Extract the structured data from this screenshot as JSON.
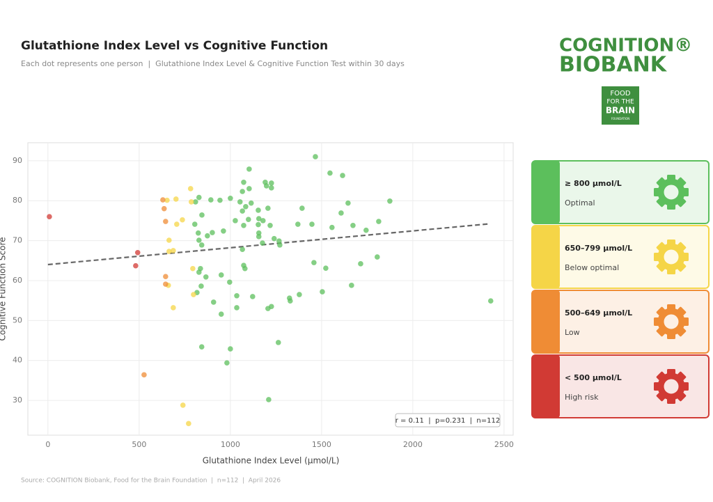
{
  "chart_data": {
    "type": "scatter",
    "title": "Glutathione Index Level vs Cognitive Function",
    "subtitle": "Each dot represents one person  |  Glutathione Index Level & Cognitive Function Test within 30 days",
    "x_label": "Glutathione Index Level (μmol/L)",
    "y_label": "Cognitive Function Score",
    "source": "Source: COGNITION Biobank, Food for the Brain Foundation  |  n=112  |  April 2026",
    "stats": "r = 0.11  |  p=0.231  |  n=112",
    "xlim": [
      -110,
      2550
    ],
    "ylim": [
      21.3,
      94.5
    ],
    "xticks": [
      0,
      500,
      1000,
      1500,
      2000,
      2500
    ],
    "yticks": [
      30,
      40,
      50,
      60,
      70,
      80,
      90
    ],
    "grid": true,
    "trendline": {
      "x": [
        0,
        2420
      ],
      "values": [
        64,
        74.2
      ],
      "color": "#666666"
    },
    "series": [
      {
        "name": "≥ 800 μmol/L",
        "description": "Optimal",
        "color": "#5cbf5c",
        "x": [
          828,
          809,
          844,
          805,
          824,
          828,
          843,
          836,
          828,
          840,
          817,
          843,
          874,
          866,
          893,
          901,
          943,
          962,
          908,
          950,
          950,
          996,
          1000,
          981,
          1000,
          1027,
          1035,
          1035,
          1066,
          1073,
          1066,
          1084,
          1103,
          1103,
          1114,
          1099,
          1073,
          1073,
          1080,
          1066,
          1122,
          1153,
          1156,
          1153,
          1156,
          1156,
          1179,
          1176,
          1191,
          1198,
          1206,
          1218,
          1225,
          1225,
          1240,
          1267,
          1271,
          1206,
          1225,
          1210,
          1263,
          1324,
          1328,
          1370,
          1378,
          1393,
          1447,
          1458,
          1466,
          1504,
          1523,
          1546,
          1557,
          1607,
          1615,
          1645,
          1672,
          1664,
          1714,
          1744,
          1805,
          1813,
          1874,
          2427,
          1053
        ],
        "values": [
          80.8,
          79.7,
          76.4,
          74.1,
          71.9,
          70.1,
          68.9,
          63.0,
          62.1,
          58.6,
          57.0,
          43.4,
          71.2,
          60.9,
          80.2,
          72.0,
          80.1,
          72.4,
          54.6,
          61.4,
          51.6,
          59.6,
          42.9,
          39.4,
          80.6,
          75.0,
          56.2,
          53.2,
          82.3,
          84.6,
          77.4,
          78.5,
          83.0,
          87.9,
          79.4,
          75.3,
          73.8,
          63.8,
          63.0,
          67.8,
          56.0,
          77.6,
          75.5,
          74.0,
          71.9,
          71.0,
          75.0,
          69.4,
          84.6,
          83.7,
          78.1,
          73.8,
          84.4,
          83.2,
          70.5,
          69.9,
          68.9,
          53.0,
          53.5,
          30.2,
          44.5,
          55.6,
          54.9,
          74.1,
          56.5,
          78.1,
          74.1,
          64.5,
          91.0,
          57.2,
          63.1,
          86.9,
          73.3,
          76.9,
          86.3,
          79.4,
          73.8,
          58.8,
          64.2,
          72.6,
          65.9,
          74.8,
          79.9,
          54.9,
          79.7
        ]
      },
      {
        "name": "650–799 μmol/L",
        "description": "Below optimal",
        "color": "#f5d547",
        "x": [
          653,
          702,
          706,
          737,
          664,
          664,
          687,
          660,
          687,
          782,
          786,
          794,
          798,
          740,
          771
        ],
        "values": [
          80.1,
          80.4,
          74.1,
          75.2,
          70.1,
          67.3,
          67.5,
          58.8,
          53.2,
          83.0,
          79.7,
          63.0,
          56.5,
          28.8,
          24.2
        ]
      },
      {
        "name": "500–649 μmol/L",
        "description": "Low",
        "color": "#ef8c35",
        "x": [
          527,
          630,
          637,
          645,
          645,
          645
        ],
        "values": [
          36.4,
          80.2,
          78.0,
          74.8,
          61.0,
          59.1
        ]
      },
      {
        "name": "< 500 μmol/L",
        "description": "High risk",
        "color": "#d13a34",
        "x": [
          8,
          492,
          481
        ],
        "values": [
          76.0,
          67.0,
          63.7
        ]
      }
    ]
  },
  "logo": {
    "line1": "COGNITION®",
    "line2": "BIOBANK"
  },
  "badge": [
    "FOOD",
    "FOR THE",
    "BRAIN",
    "FOUNDATION"
  ]
}
